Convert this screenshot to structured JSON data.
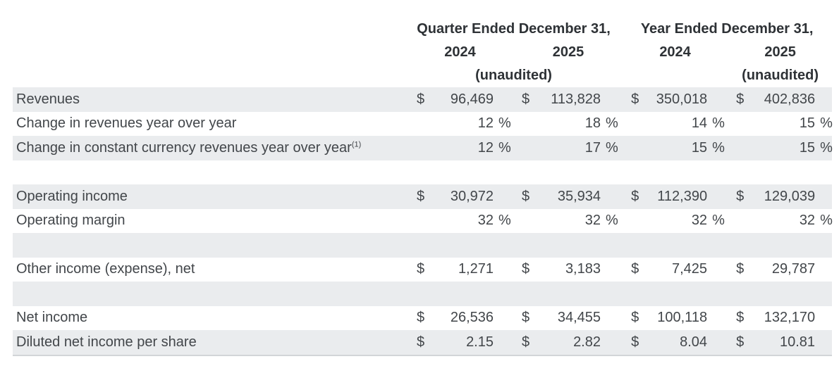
{
  "header": {
    "quarter_group": {
      "title": "Quarter Ended December 31,",
      "year1": "2024",
      "year2": "2025",
      "note": "(unaudited)"
    },
    "annual_group": {
      "title": "Year Ended December 31,",
      "year1": "2024",
      "year2": "2025",
      "note": "(unaudited)"
    }
  },
  "symbols": {
    "currency": "$",
    "percent": "%"
  },
  "table": {
    "rows": [
      {
        "label": "Revenues",
        "type": "currency",
        "values": [
          "96,469",
          "113,828",
          "350,018",
          "402,836"
        ],
        "shaded": true
      },
      {
        "label": "Change in revenues year over year",
        "type": "percent",
        "values": [
          "12",
          "18",
          "14",
          "15"
        ],
        "shaded": false
      },
      {
        "label": "Change in constant currency revenues year over year",
        "footnote": "(1)",
        "type": "percent",
        "values": [
          "12",
          "17",
          "15",
          "15"
        ],
        "shaded": true
      },
      {
        "type": "blank",
        "shaded": false
      },
      {
        "label": "Operating income",
        "type": "currency",
        "values": [
          "30,972",
          "35,934",
          "112,390",
          "129,039"
        ],
        "shaded": true
      },
      {
        "label": "Operating margin",
        "type": "percent",
        "values": [
          "32",
          "32",
          "32",
          "32"
        ],
        "shaded": false
      },
      {
        "type": "blank",
        "shaded": true
      },
      {
        "label": "Other income (expense), net",
        "type": "currency",
        "values": [
          "1,271",
          "3,183",
          "7,425",
          "29,787"
        ],
        "shaded": false
      },
      {
        "type": "blank",
        "shaded": true
      },
      {
        "label": "Net income",
        "type": "currency",
        "values": [
          "26,536",
          "34,455",
          "100,118",
          "132,170"
        ],
        "shaded": false
      },
      {
        "label": "Diluted net income per share",
        "type": "currency",
        "values": [
          "2.15",
          "2.82",
          "8.04",
          "10.81"
        ],
        "shaded": true
      }
    ]
  },
  "colors": {
    "row_shade": "#eaecee",
    "body_text": "#42464a",
    "header_text": "#2e3236",
    "background": "#ffffff"
  }
}
